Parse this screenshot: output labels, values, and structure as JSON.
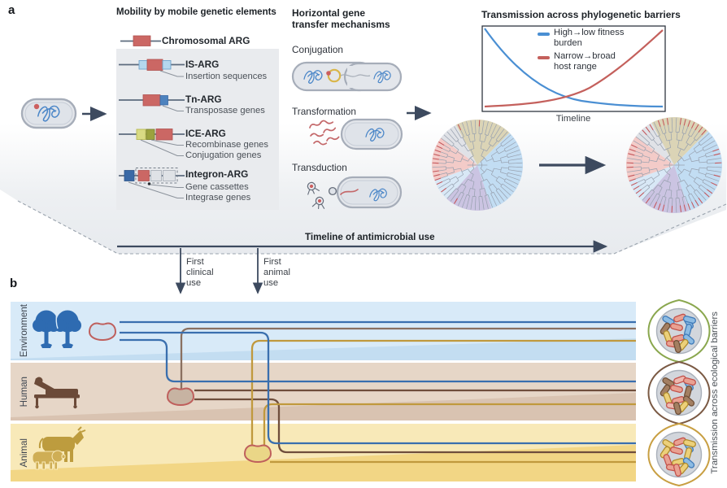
{
  "figure": {
    "panel_a_label": "a",
    "panel_b_label": "b"
  },
  "panel_a": {
    "mge": {
      "title": "Mobility by mobile genetic elements",
      "chromosomal_label": "Chromosomal ARG",
      "items": [
        {
          "label": "IS-ARG",
          "sublabels": [
            "Insertion sequences"
          ]
        },
        {
          "label": "Tn-ARG",
          "sublabels": [
            "Transposase genes"
          ]
        },
        {
          "label": "ICE-ARG",
          "sublabels": [
            "Recombinase genes",
            "Conjugation genes"
          ]
        },
        {
          "label": "Integron-ARG",
          "sublabels": [
            "Gene cassettes",
            "Integrase genes"
          ]
        }
      ]
    },
    "hgt": {
      "title": "Horizontal gene transfer mechanisms",
      "mechanisms": [
        "Conjugation",
        "Transformation",
        "Transduction"
      ]
    },
    "phylo": {
      "title": "Transmission across phylogenetic barriers",
      "xlabel": "Timeline",
      "legend": [
        {
          "label": "High→low fitness burden",
          "color": "#4a8fd3"
        },
        {
          "label": "Narrow→broad host range",
          "color": "#c4605c"
        }
      ]
    }
  },
  "timeline": {
    "label": "Timeline of antimicrobial use",
    "first_clinical": "First clinical use",
    "first_animal": "First animal use"
  },
  "panel_b": {
    "bands": [
      {
        "name": "Environment",
        "color": "#d8eaf8"
      },
      {
        "name": "Human",
        "color": "#e6d6c7"
      },
      {
        "name": "Animal",
        "color": "#f8e9b8"
      }
    ],
    "right_label": "Transmission across ecological barriers",
    "clusters": [
      {
        "outline_color": "#8aa74e",
        "rods": [
          "blue",
          "salmon",
          "blue",
          "brown",
          "salmon",
          "blue",
          "yellow",
          "salmon",
          "blue",
          "salmon",
          "yellow",
          "blue",
          "brown"
        ]
      },
      {
        "outline_color": "#7b5a44",
        "rods": [
          "brown",
          "pink",
          "blue",
          "brown",
          "salmon",
          "brown",
          "yellow",
          "salmon",
          "brown",
          "pink",
          "yellow",
          "salmon",
          "brown"
        ]
      },
      {
        "outline_color": "#c89f42",
        "rods": [
          "yellow",
          "salmon",
          "blue",
          "yellow",
          "salmon",
          "yellow",
          "salmon",
          "yellow",
          "blue",
          "salmon",
          "yellow",
          "yellow",
          "salmon"
        ]
      }
    ],
    "rod_colors": {
      "blue": {
        "fill": "#8cbbe3",
        "stroke": "#3f7ab8"
      },
      "salmon": {
        "fill": "#e9a192",
        "stroke": "#c3524b"
      },
      "pink": {
        "fill": "#eeb9b0",
        "stroke": "#c3524b"
      },
      "yellow": {
        "fill": "#ecd079",
        "stroke": "#b08c2e"
      },
      "brown": {
        "fill": "#a37f62",
        "stroke": "#6f5038"
      }
    },
    "line_colors": {
      "environment": "#3a6fae",
      "human": "#6f4e3c",
      "human_env": "#8a7060",
      "animal": "#c0993d"
    }
  },
  "chart_data": {
    "type": "line",
    "title": "Transmission across phylogenetic barriers",
    "xlabel": "Timeline",
    "ylabel": "",
    "x_range": "conceptual timeline, no tick labels",
    "grid": false,
    "legend_position": "top-center inside plot",
    "series": [
      {
        "name": "High→low fitness burden",
        "color": "#4a8fd3",
        "trend": "exponential decay: starts high at left, decreases to low at right"
      },
      {
        "name": "Narrow→broad host range",
        "color": "#c4605c",
        "trend": "exponential growth: starts low at left, increases to high at right"
      }
    ]
  }
}
